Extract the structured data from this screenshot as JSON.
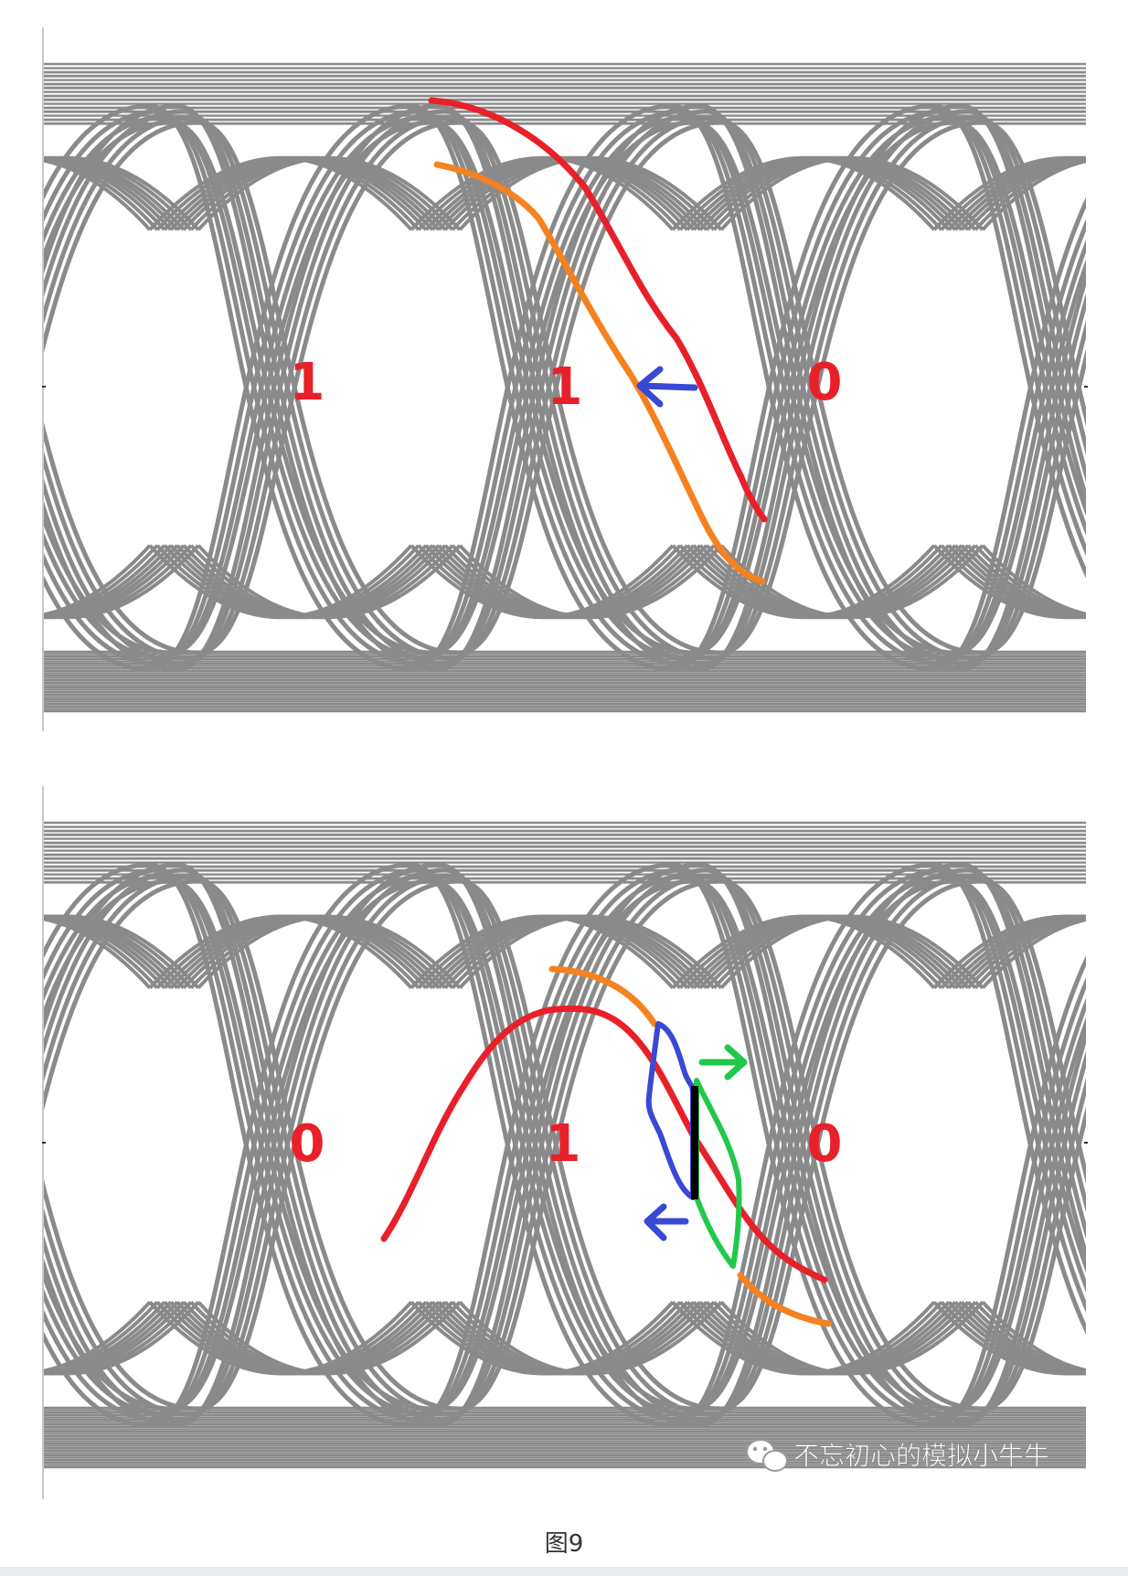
{
  "colors": {
    "eye_trace": "#8a8a8a",
    "bit_label": "#e8202a",
    "annotation_red": "#e8202a",
    "annotation_orange": "#f58220",
    "annotation_blue": "#3a48d6",
    "annotation_green": "#22c84a",
    "annotation_black": "#000000"
  },
  "top_diagram": {
    "bits": [
      "1",
      "1",
      "0"
    ]
  },
  "bottom_diagram": {
    "bits": [
      "0",
      "1",
      "0"
    ]
  },
  "watermark": {
    "icon": "wechat-icon",
    "text": "不忘初心的模拟小牛牛"
  },
  "caption": "图9"
}
